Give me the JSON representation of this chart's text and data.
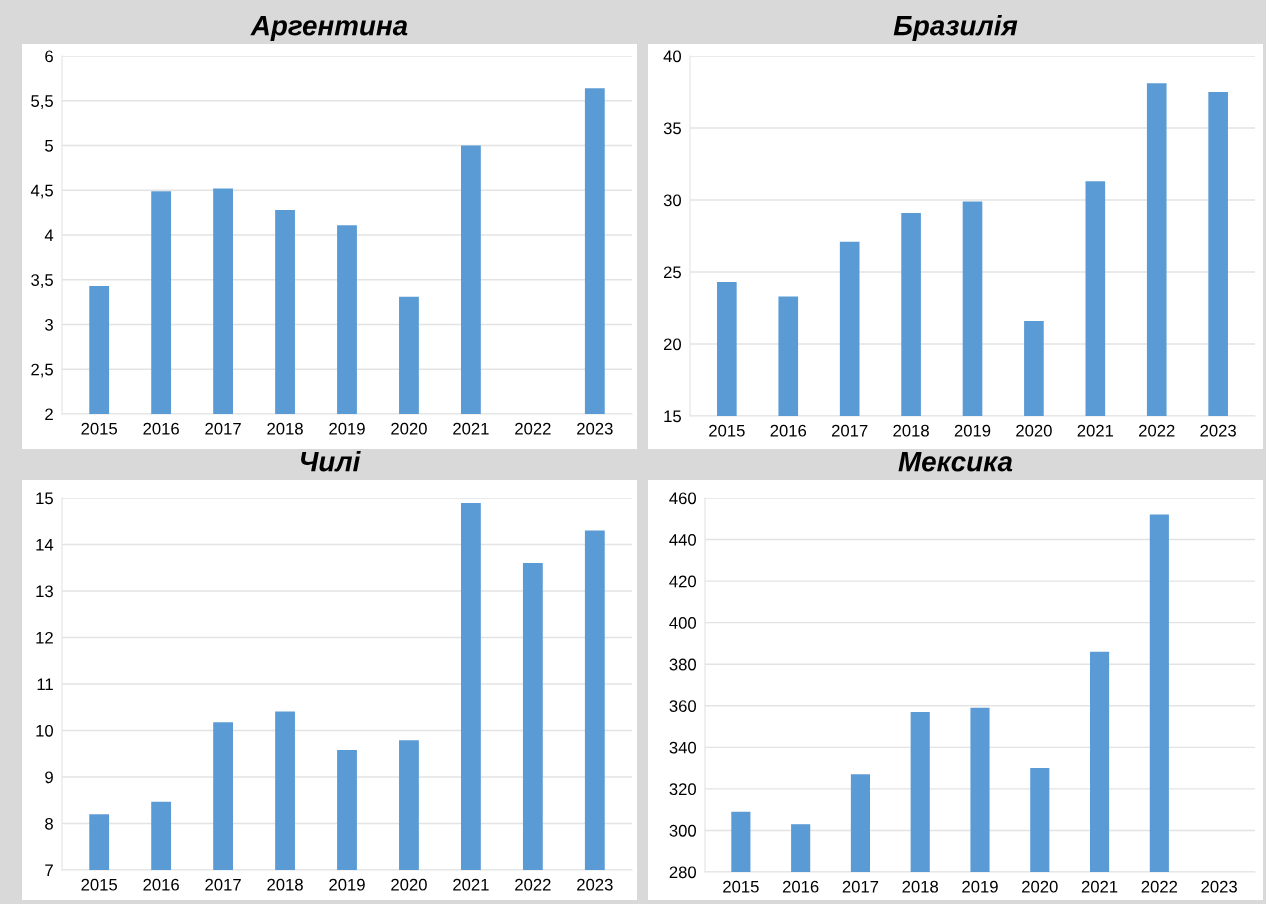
{
  "chart_data": [
    {
      "type": "bar",
      "title": "Аргентина",
      "categories": [
        "2015",
        "2016",
        "2017",
        "2018",
        "2019",
        "2020",
        "2021",
        "2022",
        "2023"
      ],
      "values": [
        3.43,
        4.49,
        4.52,
        4.28,
        4.11,
        3.31,
        5.0,
        null,
        5.64
      ],
      "color": "#5b9bd5",
      "ylim": [
        2,
        6
      ],
      "yticks": [
        2,
        {
          "value": 2.5,
          "label": "2,5"
        },
        3,
        {
          "value": 3.5,
          "label": "3,5"
        },
        4,
        {
          "value": 4.5,
          "label": "4,5"
        },
        5,
        {
          "value": 5.5,
          "label": "5,5"
        },
        6
      ],
      "grid": "y"
    },
    {
      "type": "bar",
      "title": "Бразилія",
      "categories": [
        "2015",
        "2016",
        "2017",
        "2018",
        "2019",
        "2020",
        "2021",
        "2022",
        "2023"
      ],
      "values": [
        24.3,
        23.3,
        27.1,
        29.1,
        29.9,
        21.6,
        31.3,
        38.1,
        37.5
      ],
      "color": "#5b9bd5",
      "ylim": [
        15,
        40
      ],
      "yticks": [
        15,
        20,
        25,
        30,
        35,
        40
      ],
      "grid": "y"
    },
    {
      "type": "bar",
      "title": "Чилі",
      "categories": [
        "2015",
        "2016",
        "2017",
        "2018",
        "2019",
        "2020",
        "2021",
        "2022",
        "2023"
      ],
      "values": [
        8.2,
        8.47,
        10.18,
        10.41,
        9.58,
        9.79,
        14.89,
        13.6,
        14.3
      ],
      "color": "#5b9bd5",
      "ylim": [
        7,
        15
      ],
      "yticks": [
        7,
        8,
        9,
        10,
        11,
        12,
        13,
        14,
        15
      ],
      "grid": "y"
    },
    {
      "type": "bar",
      "title": "Мексика",
      "categories": [
        "2015",
        "2016",
        "2017",
        "2018",
        "2019",
        "2020",
        "2021",
        "2022",
        "2023"
      ],
      "values": [
        309,
        303,
        327,
        357,
        359,
        330,
        386,
        452,
        null
      ],
      "color": "#5b9bd5",
      "ylim": [
        280,
        460
      ],
      "yticks": [
        280,
        300,
        320,
        340,
        360,
        380,
        400,
        420,
        440,
        460
      ],
      "grid": "y"
    }
  ]
}
